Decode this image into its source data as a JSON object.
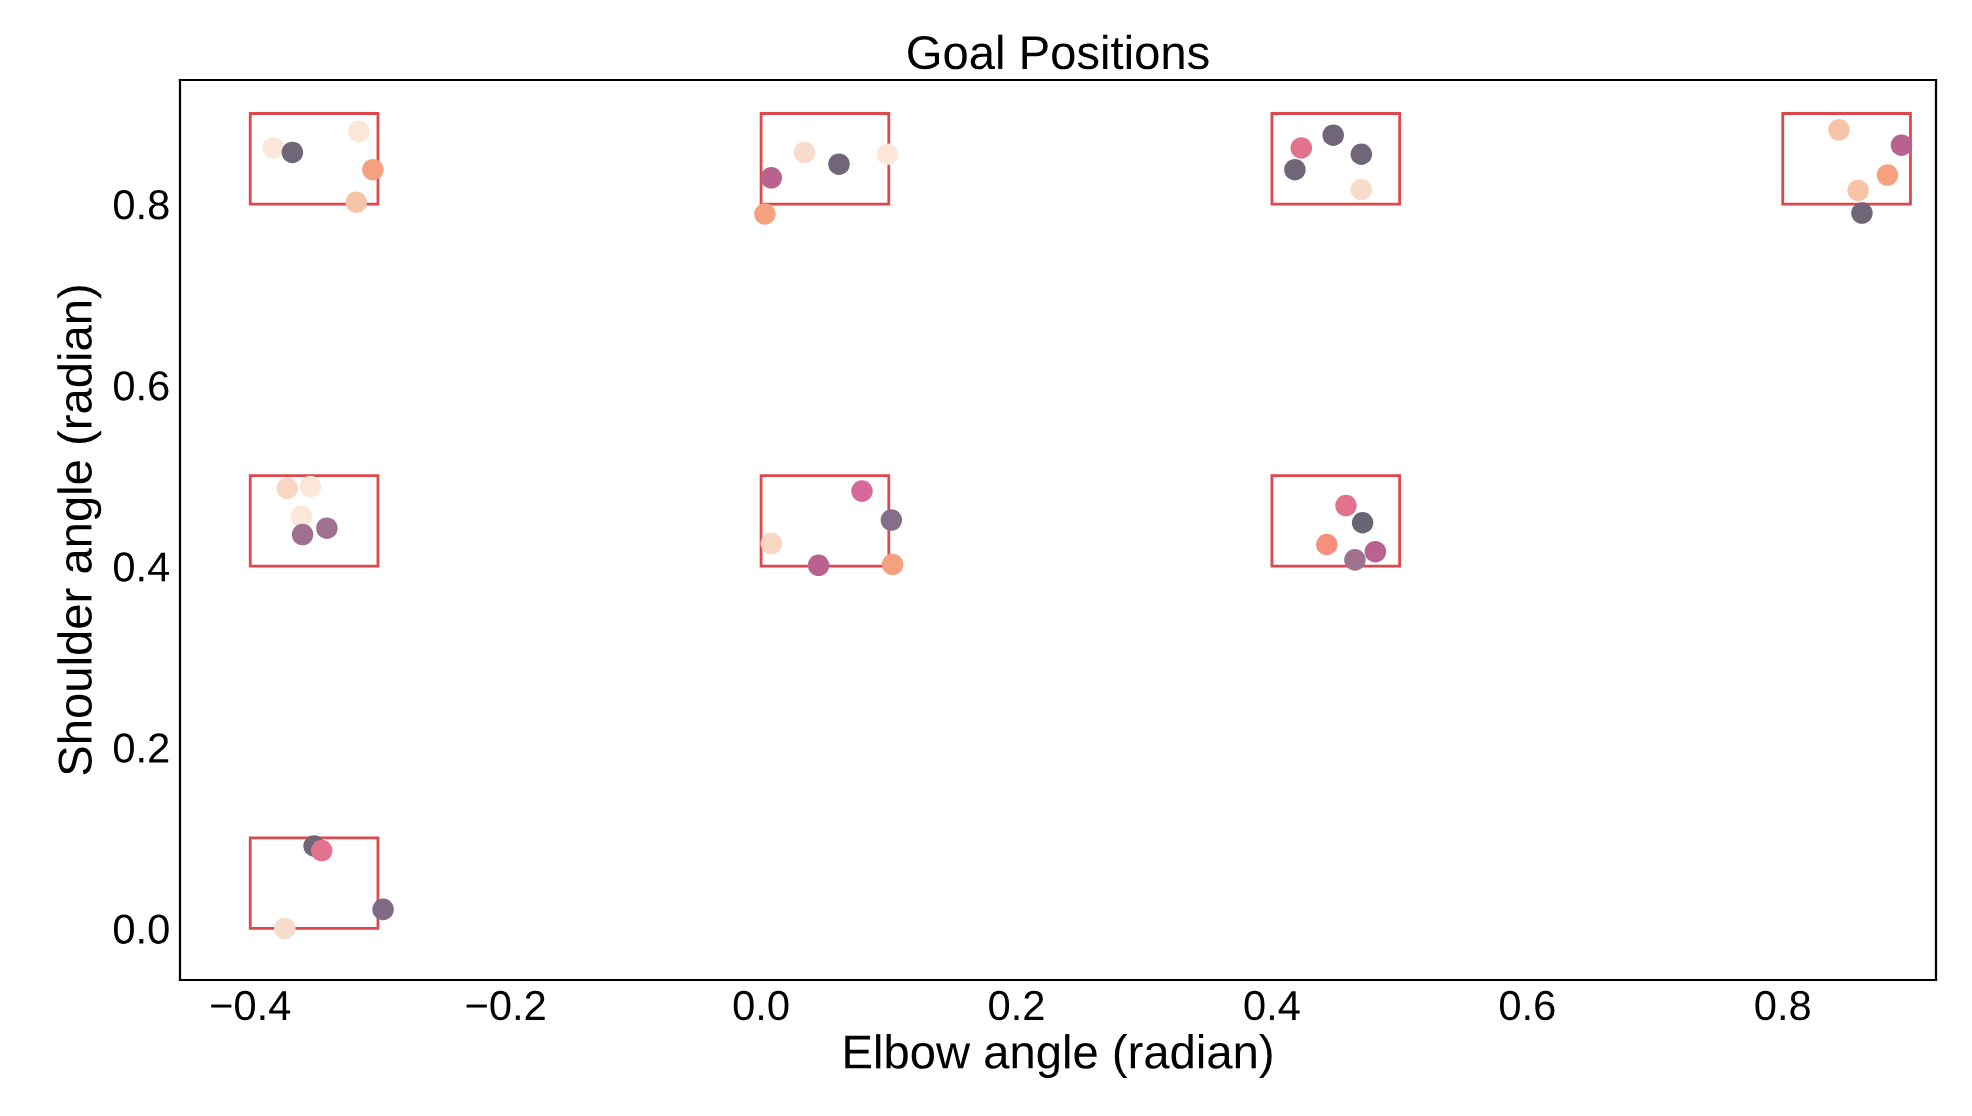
{
  "chart_data": {
    "type": "scatter",
    "title": "Goal Positions",
    "xlabel": "Elbow angle (radian)",
    "ylabel": "Shoulder angle (radian)",
    "xlim": [
      -0.455,
      0.92
    ],
    "ylim": [
      -0.057,
      0.937
    ],
    "xticks": [
      {
        "value": -0.4,
        "label": "−0.4"
      },
      {
        "value": -0.2,
        "label": "−0.2"
      },
      {
        "value": 0,
        "label": "0.0"
      },
      {
        "value": 0.2,
        "label": "0.2"
      },
      {
        "value": 0.4,
        "label": "0.4"
      },
      {
        "value": 0.6,
        "label": "0.6"
      },
      {
        "value": 0.8,
        "label": "0.8"
      }
    ],
    "yticks": [
      {
        "value": 0,
        "label": "0.0"
      },
      {
        "value": 0.2,
        "label": "0.2"
      },
      {
        "value": 0.4,
        "label": "0.4"
      },
      {
        "value": 0.6,
        "label": "0.6"
      },
      {
        "value": 0.8,
        "label": "0.8"
      }
    ],
    "grid": false,
    "legend": false,
    "series": [
      {
        "type": "bar",
        "color": "#e0474c",
        "x": [
          -0.35,
          0.05,
          0.45,
          0.85
        ],
        "base": [
          0.8,
          0.8,
          0.8,
          0.8
        ],
        "values": [
          0.1,
          0.1,
          0.1,
          0.1
        ]
      },
      {
        "type": "bar",
        "color": "#e0474c",
        "x": [
          -0.35,
          0.05,
          0.45
        ],
        "base": [
          0.4,
          0.4,
          0.4
        ],
        "values": [
          0.1,
          0.1,
          0.1
        ]
      },
      {
        "type": "bar",
        "color": "#e0474c",
        "x": [
          -0.35
        ],
        "base": [
          0
        ],
        "values": [
          0.1
        ]
      },
      {
        "marker": "circle",
        "x": [
          -0.382,
          -0.367,
          -0.315,
          -0.304,
          -0.317,
          0.008,
          0.003,
          0.034,
          0.061,
          0.099,
          0.423,
          0.448,
          0.47,
          0.418,
          0.47,
          0.844,
          0.893,
          0.882,
          0.859,
          0.862,
          -0.371,
          -0.353,
          -0.36,
          -0.359,
          -0.34,
          0.008,
          0.045,
          0.079,
          0.102,
          0.103,
          0.458,
          0.471,
          0.443,
          0.465,
          0.481,
          -0.35,
          -0.344,
          -0.373,
          -0.296
        ],
        "values": [
          0.862,
          0.857,
          0.88,
          0.838,
          0.802,
          0.829,
          0.789,
          0.857,
          0.844,
          0.855,
          0.862,
          0.876,
          0.855,
          0.838,
          0.816,
          0.882,
          0.865,
          0.832,
          0.815,
          0.79,
          0.486,
          0.488,
          0.455,
          0.435,
          0.442,
          0.425,
          0.401,
          0.483,
          0.451,
          0.402,
          0.467,
          0.448,
          0.424,
          0.407,
          0.416,
          0.091,
          0.086,
          0.0,
          0.021
        ],
        "colors": [
          "#fbe6d8",
          "#716578",
          "#fbe6d8",
          "#f5a07f",
          "#f8c4a8",
          "#b9618f",
          "#f5a07f",
          "#f8dccb",
          "#716578",
          "#fbe6d8",
          "#e2728d",
          "#716578",
          "#716578",
          "#716578",
          "#f8dccb",
          "#f8c4a8",
          "#b9618f",
          "#f5a07f",
          "#f8c4a8",
          "#716578",
          "#f8d6c2",
          "#fbe6d8",
          "#fbe6d8",
          "#a0708f",
          "#a0708f",
          "#f8d6c2",
          "#b9618f",
          "#d8689a",
          "#856e8a",
          "#f5a07f",
          "#e2728d",
          "#6b6475",
          "#f5907f",
          "#a0708f",
          "#b9618f",
          "#716578",
          "#e2728d",
          "#f8dccb",
          "#806a86"
        ]
      }
    ]
  }
}
